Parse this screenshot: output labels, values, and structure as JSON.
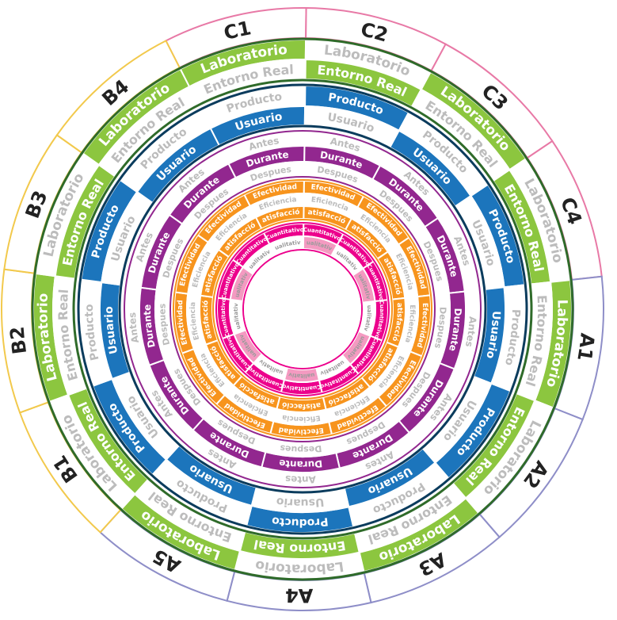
{
  "colors": {
    "green": "#8cc63f",
    "green_border": "#2f6b2a",
    "grey_text": "#bcbcbc",
    "grey_dark_text": "#9a9a9a",
    "blue": "#1c75bc",
    "blue_border": "#0b3c5d",
    "purple": "#92278f",
    "orange": "#f7941d",
    "pink": "#ec008c",
    "pink_light": "#f49ac1",
    "sector_pink": "#e879a6",
    "sector_yellow": "#f2c94c",
    "sector_lavender": "#8e8ec8"
  },
  "groups": [
    {
      "name": "C",
      "color_key": "sector_pink"
    },
    {
      "name": "A",
      "color_key": "sector_lavender"
    },
    {
      "name": "B",
      "color_key": "sector_yellow"
    }
  ],
  "outer_labels": [
    "C1",
    "C2",
    "C3",
    "C4",
    "A1",
    "A2",
    "A3",
    "A4",
    "A5",
    "B1",
    "B2",
    "B3",
    "B4"
  ],
  "lab_ring": [
    "Laboratorio",
    "Laboratorio",
    "Laboratorio",
    "Laboratorio",
    "Laboratorio",
    "Laboratorio",
    "Laboratorio",
    "Laboratorio",
    "Laboratorio",
    "Laboratorio",
    "Laboratorio",
    "Laboratorio",
    "Laboratorio"
  ],
  "real_ring": [
    "Entorno Real",
    "Entorno Real",
    "Entorno Real",
    "Entorno Real",
    "Entorno Real",
    "Entorno Real",
    "Entorno Real",
    "Entorno Real",
    "Entorno Real",
    "Entorno Real",
    "Entorno Real",
    "Entorno Real",
    "Entorno Real"
  ],
  "user_ring": [
    "Usuario",
    "Usuario",
    "Usuario",
    "Usuario",
    "Usuario",
    "Usuario",
    "Usuario",
    "Usuario",
    "Usuario",
    "Usuario",
    "Usuario",
    "Usuario",
    "Usuario"
  ],
  "product_ring": [
    "Producto",
    "Producto",
    "Producto",
    "Producto",
    "Producto",
    "Producto",
    "Producto",
    "Producto",
    "Producto",
    "Producto",
    "Producto",
    "Producto",
    "Producto"
  ],
  "antes_ring": [
    "Antes",
    "Antes",
    "Antes",
    "Antes",
    "Antes",
    "Antes",
    "Antes",
    "Antes",
    "Antes",
    "Antes",
    "Antes",
    "Antes",
    "Antes"
  ],
  "durante_ring": [
    "Durante",
    "Durante",
    "Durante",
    "Durante",
    "Durante",
    "Durante",
    "Durante",
    "Durante",
    "Durante",
    "Durante",
    "Durante",
    "Durante",
    "Durante"
  ],
  "despues_ring": [
    "Despues",
    "Despues",
    "Despues",
    "Despues",
    "Despues",
    "Despues",
    "Despues",
    "Despues",
    "Despues",
    "Despues",
    "Despues",
    "Despues",
    "Despues"
  ],
  "efectividad_ring": [
    "Efectividad",
    "Efectividad",
    "Efectividad",
    "Efectividad",
    "Efectividad",
    "Efectividad",
    "Efectividad",
    "Efectividad",
    "Efectividad",
    "Efectividad",
    "Efectividad",
    "Efectividad",
    "Efectividad"
  ],
  "eficiencia_ring": [
    "Eficiencia",
    "Eficiencia",
    "Eficiencia",
    "Eficiencia",
    "Eficiencia",
    "Eficiencia",
    "Eficiencia",
    "Eficiencia",
    "Eficiencia",
    "Eficiencia",
    "Eficiencia",
    "Eficiencia",
    "Eficiencia"
  ],
  "satisfaccion_ring": [
    "Satisfacción",
    "Satisfacción",
    "Satisfacción",
    "Satisfacción",
    "Satisfacción",
    "Satisfacción",
    "Satisfacción",
    "Satisfacción",
    "Satisfacción",
    "Satisfacción",
    "Satisfacción",
    "Satisfacción",
    "Satisfacción"
  ],
  "cuantitativo_ring": [
    "Cuantitativo",
    "Cuantitativo",
    "Cuantitativo",
    "Cuantitativo",
    "Cuantitativo",
    "Cuantitativo",
    "Cuantitativo",
    "Cuantitativo",
    "Cuantitativo",
    "Cuantitativo",
    "Cuantitativo",
    "Cuantitativo",
    "Cuantitativo"
  ],
  "cualitativo_ring": [
    "Cualitativo",
    "Cualitativo",
    "Cualitativo",
    "Cualitativo",
    "Cualitativo",
    "Cualitativo",
    "Cualitativo",
    "Cualitativo",
    "Cualitativo",
    "Cualitativo",
    "Cualitativo",
    "Cualitativo",
    "Cualitativo"
  ]
}
